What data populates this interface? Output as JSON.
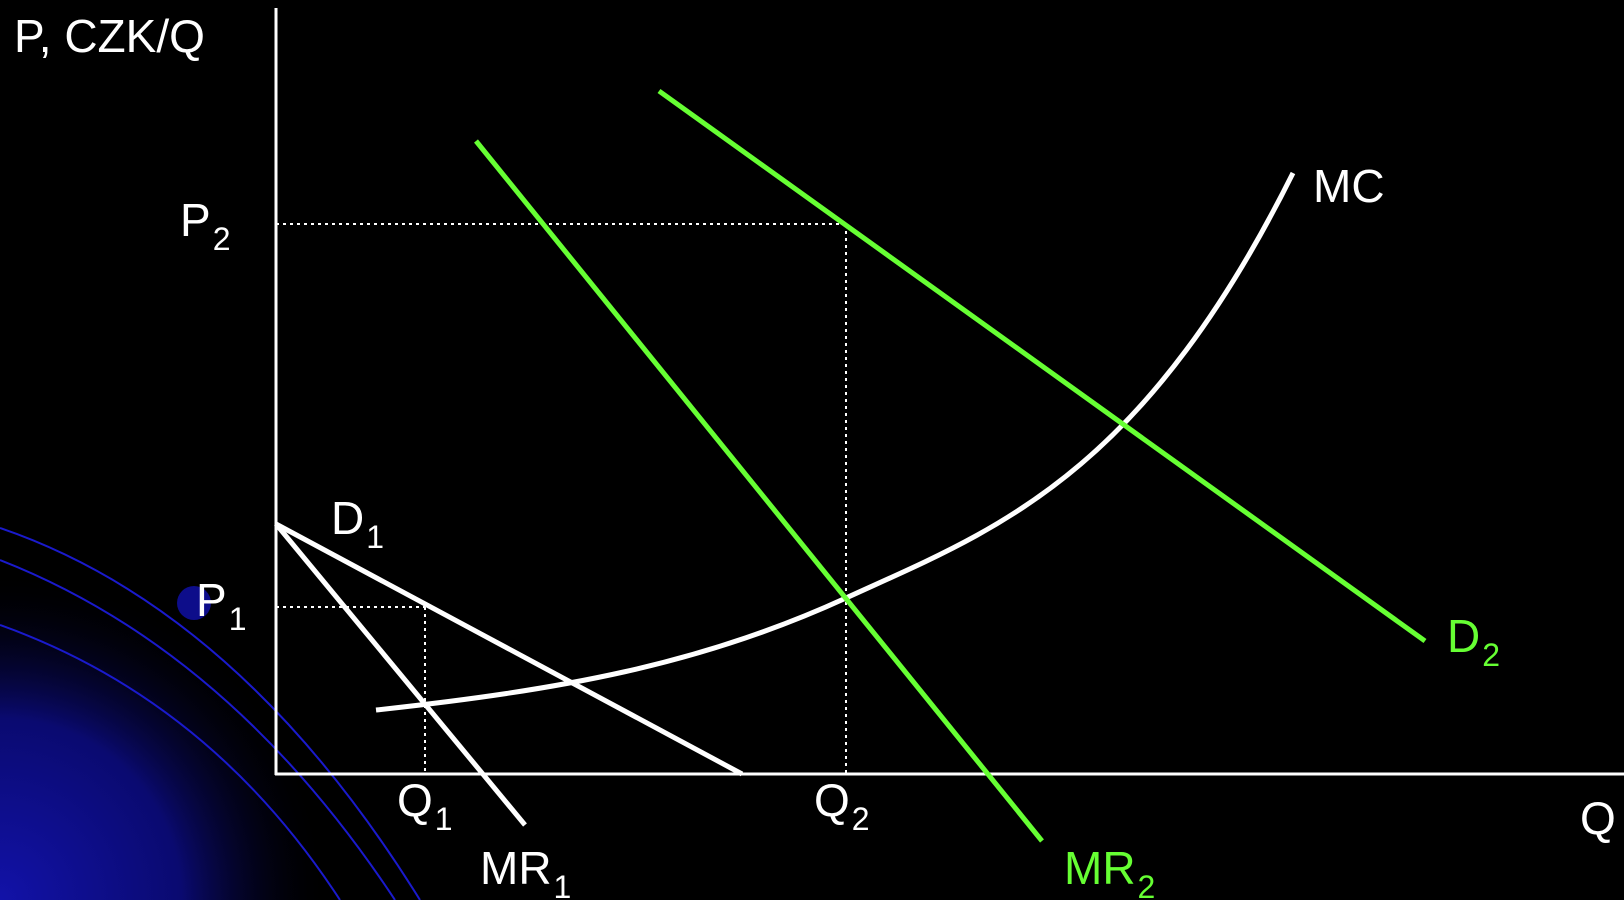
{
  "colors": {
    "background": "#000000",
    "axis": "#ffffff",
    "white_curve": "#ffffff",
    "green_curve": "#66ff33",
    "decor_arc": "#1a1acc",
    "decor_glow": "#1010a0"
  },
  "labels": {
    "y_axis": "P, CZK/Q",
    "x_axis": "Q",
    "p2": {
      "main": "P",
      "sub": "2"
    },
    "p1": {
      "main": "P",
      "sub": "1"
    },
    "q1": {
      "main": "Q",
      "sub": "1"
    },
    "q2": {
      "main": "Q",
      "sub": "2"
    },
    "mc": "MC",
    "d1": {
      "main": "D",
      "sub": "1"
    },
    "mr1": {
      "main": "MR",
      "sub": "1"
    },
    "d2": {
      "main": "D",
      "sub": "2"
    },
    "mr2": {
      "main": "MR",
      "sub": "2"
    }
  }
}
